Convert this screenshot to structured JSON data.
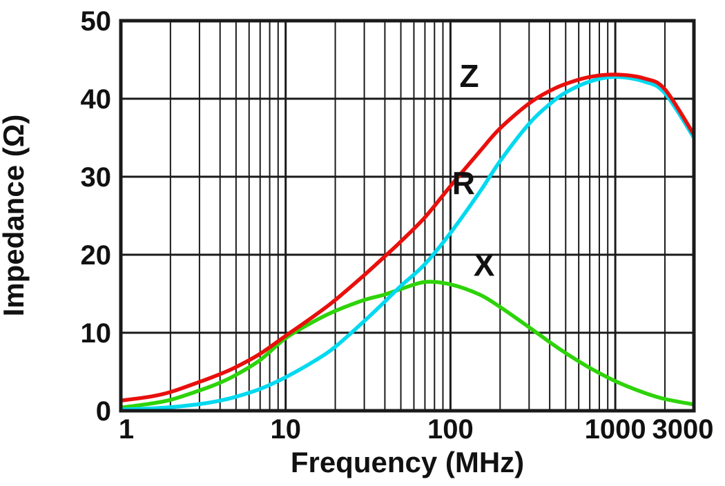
{
  "chart_data": {
    "type": "line",
    "title": "",
    "xlabel": "Frequency (MHz)",
    "ylabel": "Impedance (Ω)",
    "x_scale": "log",
    "y_scale": "linear",
    "xlim": [
      1,
      3000
    ],
    "ylim": [
      0,
      50
    ],
    "x_ticks": [
      1,
      10,
      100,
      1000,
      3000
    ],
    "y_ticks": [
      0,
      10,
      20,
      30,
      40,
      50
    ],
    "grid": true,
    "legend": "inline-labels",
    "colors": {
      "grid": "#1a1a1a",
      "text": "#111111",
      "background": "#ffffff"
    },
    "series": [
      {
        "name": "Z",
        "color": "#e8100c",
        "label": {
          "text": "Z",
          "x": 130,
          "y": 41.5
        },
        "points": [
          [
            1,
            1.3
          ],
          [
            1.5,
            1.8
          ],
          [
            2,
            2.4
          ],
          [
            3,
            3.7
          ],
          [
            4,
            4.7
          ],
          [
            5,
            5.6
          ],
          [
            7,
            7.3
          ],
          [
            10,
            9.6
          ],
          [
            15,
            12.2
          ],
          [
            20,
            14.2
          ],
          [
            30,
            17.4
          ],
          [
            40,
            19.8
          ],
          [
            50,
            21.7
          ],
          [
            70,
            24.8
          ],
          [
            100,
            28.8
          ],
          [
            150,
            33.2
          ],
          [
            200,
            36.2
          ],
          [
            300,
            39.4
          ],
          [
            400,
            41
          ],
          [
            500,
            41.9
          ],
          [
            700,
            42.8
          ],
          [
            1000,
            43.1
          ],
          [
            1500,
            42.6
          ],
          [
            2000,
            41.2
          ],
          [
            3000,
            35.4
          ]
        ]
      },
      {
        "name": "R",
        "color": "#00d9f0",
        "label": {
          "text": "R",
          "x": 120,
          "y": 27.8
        },
        "points": [
          [
            1,
            0.15
          ],
          [
            1.5,
            0.3
          ],
          [
            2,
            0.45
          ],
          [
            3,
            0.85
          ],
          [
            4,
            1.3
          ],
          [
            5,
            1.8
          ],
          [
            7,
            2.8
          ],
          [
            10,
            4.3
          ],
          [
            15,
            6.4
          ],
          [
            20,
            8.2
          ],
          [
            30,
            11.5
          ],
          [
            40,
            14
          ],
          [
            50,
            16
          ],
          [
            70,
            18.8
          ],
          [
            100,
            22.8
          ],
          [
            150,
            28
          ],
          [
            200,
            32
          ],
          [
            300,
            36.8
          ],
          [
            400,
            39.3
          ],
          [
            500,
            40.8
          ],
          [
            700,
            42.2
          ],
          [
            1000,
            42.8
          ],
          [
            1500,
            42.2
          ],
          [
            2000,
            40.7
          ],
          [
            3000,
            35
          ]
        ]
      },
      {
        "name": "X",
        "color": "#2ed309",
        "label": {
          "text": "X",
          "x": 160,
          "y": 17.3
        },
        "points": [
          [
            1,
            0.4
          ],
          [
            1.5,
            0.9
          ],
          [
            2,
            1.4
          ],
          [
            3,
            2.6
          ],
          [
            4,
            3.6
          ],
          [
            5,
            4.6
          ],
          [
            7,
            6.5
          ],
          [
            10,
            9.3
          ],
          [
            15,
            11.5
          ],
          [
            20,
            12.8
          ],
          [
            30,
            14.2
          ],
          [
            40,
            14.9
          ],
          [
            50,
            15.6
          ],
          [
            70,
            16.5
          ],
          [
            100,
            16.2
          ],
          [
            150,
            14.9
          ],
          [
            200,
            13.3
          ],
          [
            300,
            10.7
          ],
          [
            400,
            8.8
          ],
          [
            500,
            7.4
          ],
          [
            700,
            5.5
          ],
          [
            1000,
            3.8
          ],
          [
            1500,
            2.3
          ],
          [
            2000,
            1.5
          ],
          [
            3000,
            0.8
          ]
        ]
      }
    ]
  }
}
